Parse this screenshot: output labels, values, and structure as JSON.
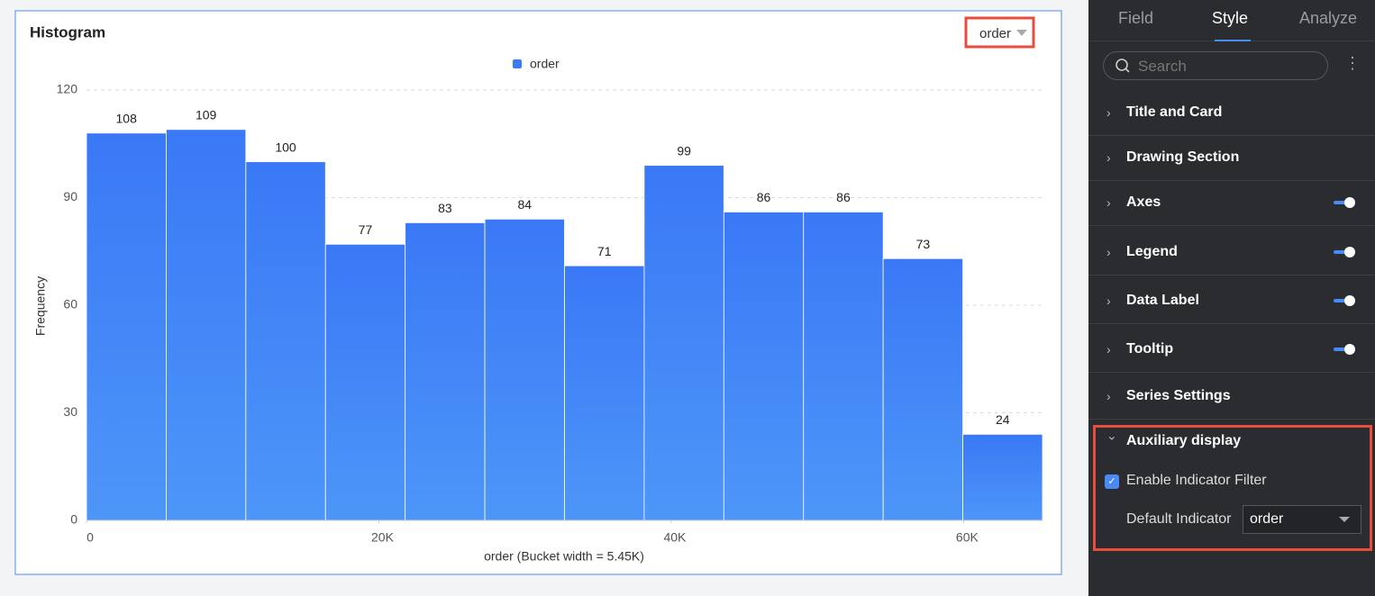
{
  "chart_data": {
    "type": "histogram",
    "title": "Histogram",
    "indicator": "order",
    "series": [
      {
        "name": "order",
        "color": "#3b7cf6",
        "values": [
          108,
          109,
          100,
          77,
          83,
          84,
          71,
          99,
          86,
          86,
          73,
          24
        ]
      }
    ],
    "bins": [
      0,
      5450,
      10900,
      16350,
      21800,
      27250,
      32700,
      38150,
      43600,
      49050,
      54500,
      59950,
      65400
    ],
    "xlim": [
      0,
      65400
    ],
    "xticks": [
      0,
      {
        "value": 20000,
        "label": "20K"
      },
      {
        "value": 40000,
        "label": "40K"
      },
      {
        "value": 60000,
        "label": "60K"
      }
    ],
    "ylim": [
      0,
      120
    ],
    "yticks": [
      0,
      30,
      60,
      90,
      120
    ],
    "grid": true,
    "x_label": "order (Bucket width = 5.45K)",
    "y_label": "Frequency"
  },
  "panel": {
    "tabs": [
      "Field",
      "Style",
      "Analyze"
    ],
    "active_tab": 1,
    "search_placeholder": "Search",
    "sections": [
      {
        "label": "Title and Card"
      },
      {
        "label": "Drawing Section"
      },
      {
        "label": "Axes",
        "toggle": true
      },
      {
        "label": "Legend",
        "toggle": true
      },
      {
        "label": "Data Label",
        "toggle": true
      },
      {
        "label": "Tooltip",
        "toggle": true
      },
      {
        "label": "Series Settings"
      },
      {
        "label": "Auxiliary display",
        "expanded": true
      }
    ],
    "auxiliary": {
      "checkbox_label": "Enable Indicator Filter",
      "checked": true,
      "select_label": "Default Indicator",
      "select_value": "order"
    }
  }
}
